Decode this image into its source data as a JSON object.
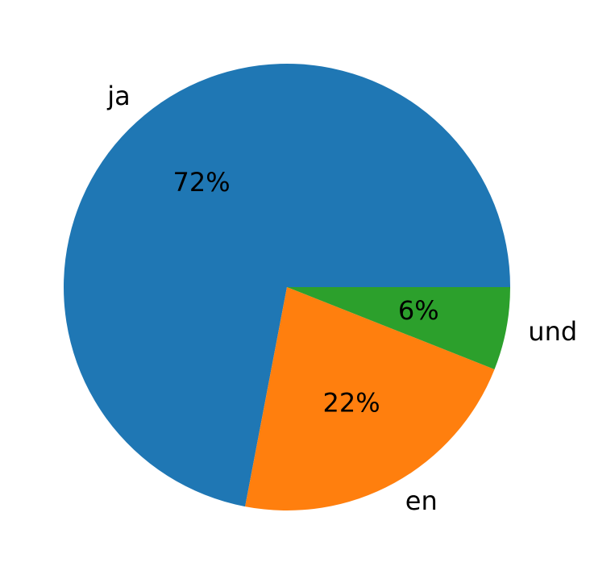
{
  "chart_data": {
    "type": "pie",
    "categories": [
      "ja",
      "en",
      "und"
    ],
    "values": [
      72,
      22,
      6
    ],
    "value_labels": [
      "72%",
      "22%",
      "6%"
    ],
    "colors": [
      "#1f77b4",
      "#ff7f0e",
      "#2ca02c"
    ]
  }
}
